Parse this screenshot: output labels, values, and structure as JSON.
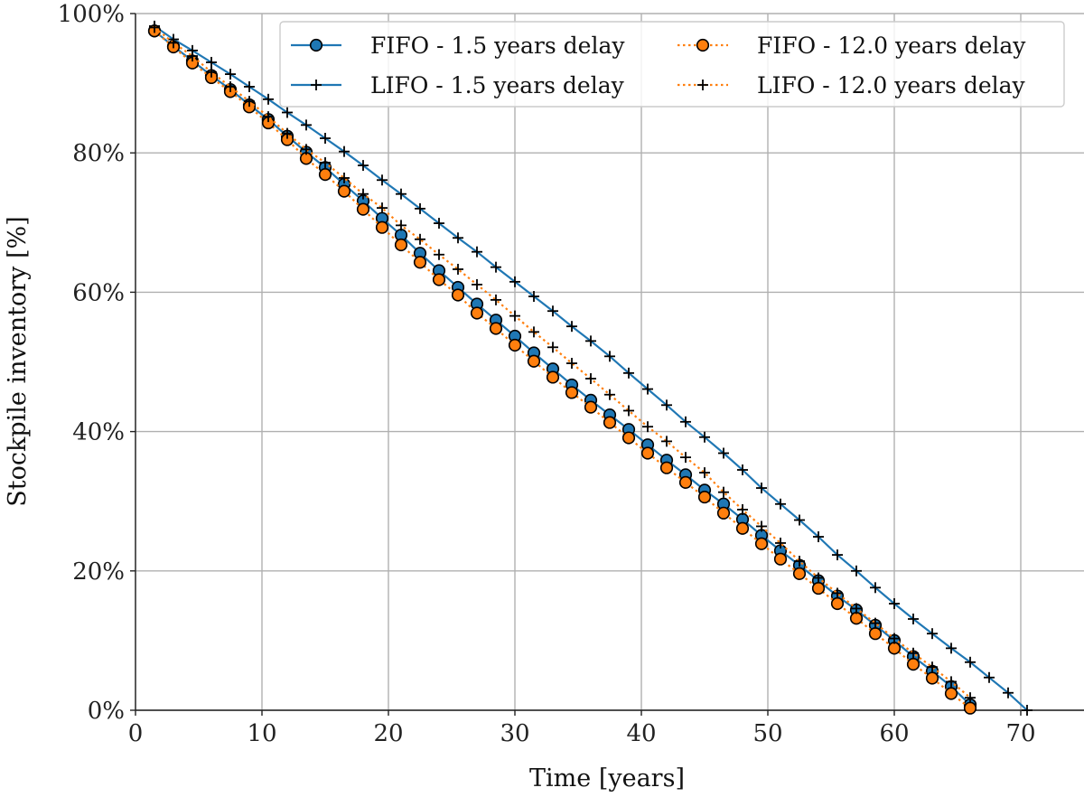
{
  "chart_data": {
    "type": "line",
    "title": "",
    "xlabel": "Time [years]",
    "ylabel": "Stockpile inventory [%]",
    "xlim": [
      0,
      75
    ],
    "ylim": [
      0,
      100
    ],
    "xticks": [
      0,
      10,
      20,
      30,
      40,
      50,
      60,
      70
    ],
    "yticks": [
      0,
      20,
      40,
      60,
      80,
      100
    ],
    "xtick_labels": [
      "0",
      "10",
      "20",
      "30",
      "40",
      "50",
      "60",
      "70"
    ],
    "ytick_labels": [
      "0%",
      "20%",
      "40%",
      "60%",
      "80%",
      "100%"
    ],
    "grid": true,
    "legend_position": "top-right",
    "legend_columns": 2,
    "series": [
      {
        "name": "FIFO - 1.5 years delay",
        "color": "#1f77b4",
        "line_style": "solid",
        "marker": "circle",
        "marker_fill": "#1f77b4",
        "x": [
          1.5,
          3,
          4.5,
          6,
          7.5,
          9,
          10.5,
          12,
          13.5,
          15,
          16.5,
          18,
          19.5,
          21,
          22.5,
          24,
          25.5,
          27,
          28.5,
          30,
          31.5,
          33,
          34.5,
          36,
          37.5,
          39,
          40.5,
          42,
          43.5,
          45,
          46.5,
          48,
          49.5,
          51,
          52.5,
          54,
          55.5,
          57,
          58.5,
          60,
          61.5,
          63,
          64.5,
          66
        ],
        "y": [
          97.5,
          95.3,
          93.2,
          91.1,
          89.1,
          86.9,
          84.8,
          82.4,
          80.1,
          77.9,
          75.5,
          73.1,
          70.6,
          68.2,
          65.6,
          63.1,
          60.7,
          58.3,
          56.0,
          53.7,
          51.3,
          49.0,
          46.7,
          44.5,
          42.4,
          40.3,
          38.1,
          35.9,
          33.8,
          31.6,
          29.6,
          27.4,
          25.1,
          22.9,
          20.8,
          18.6,
          16.4,
          14.4,
          12.2,
          10.0,
          7.7,
          5.6,
          3.4,
          0.8
        ]
      },
      {
        "name": "LIFO - 1.5 years delay",
        "color": "#1f77b4",
        "line_style": "solid",
        "marker": "plus",
        "marker_fill": "#000000",
        "x": [
          1.5,
          3,
          4.5,
          6,
          7.5,
          9,
          10.5,
          12,
          13.5,
          15,
          16.5,
          18,
          19.5,
          21,
          22.5,
          24,
          25.5,
          27,
          28.5,
          30,
          31.5,
          33,
          34.5,
          36,
          37.5,
          39,
          40.5,
          42,
          43.5,
          45,
          46.5,
          48,
          49.5,
          51,
          52.5,
          54,
          55.5,
          57,
          58.5,
          60,
          61.5,
          63,
          64.5,
          66,
          67.5,
          69,
          70.5
        ],
        "y": [
          98.2,
          96.3,
          94.7,
          93.0,
          91.3,
          89.5,
          87.7,
          85.8,
          84.0,
          82.1,
          80.2,
          78.2,
          76.1,
          74.1,
          72.0,
          69.9,
          67.8,
          65.8,
          63.6,
          61.5,
          59.4,
          57.3,
          55.1,
          53.0,
          50.8,
          48.4,
          46.1,
          43.8,
          41.4,
          39.2,
          36.9,
          34.5,
          31.9,
          29.6,
          27.3,
          24.9,
          22.3,
          20.0,
          17.6,
          15.3,
          13.1,
          11.0,
          8.9,
          6.9,
          4.7,
          2.5,
          0.0
        ]
      },
      {
        "name": "FIFO - 12.0 years delay",
        "color": "#ff7f0e",
        "line_style": "dotted",
        "marker": "circle",
        "marker_fill": "#ff7f0e",
        "x": [
          1.5,
          3,
          4.5,
          6,
          7.5,
          9,
          10.5,
          12,
          13.5,
          15,
          16.5,
          18,
          19.5,
          21,
          22.5,
          24,
          25.5,
          27,
          28.5,
          30,
          31.5,
          33,
          34.5,
          36,
          37.5,
          39,
          40.5,
          42,
          43.5,
          45,
          46.5,
          48,
          49.5,
          51,
          52.5,
          54,
          55.5,
          57,
          58.5,
          60,
          61.5,
          63,
          64.5,
          66
        ],
        "y": [
          97.5,
          95.2,
          92.9,
          90.8,
          88.8,
          86.6,
          84.3,
          81.9,
          79.2,
          76.9,
          74.5,
          71.9,
          69.3,
          66.8,
          64.3,
          61.8,
          59.6,
          57.0,
          54.8,
          52.4,
          50.1,
          47.8,
          45.6,
          43.5,
          41.3,
          39.1,
          36.9,
          34.8,
          32.7,
          30.6,
          28.3,
          26.1,
          23.9,
          21.7,
          19.6,
          17.5,
          15.3,
          13.2,
          11.0,
          8.9,
          6.6,
          4.6,
          2.4,
          0.3
        ]
      },
      {
        "name": "LIFO - 12.0 years delay",
        "color": "#ff7f0e",
        "line_style": "dotted",
        "marker": "plus",
        "marker_fill": "#000000",
        "x": [
          1.5,
          3,
          4.5,
          6,
          7.5,
          9,
          10.5,
          12,
          13.5,
          15,
          16.5,
          18,
          19.5,
          21,
          22.5,
          24,
          25.5,
          27,
          28.5,
          30,
          31.5,
          33,
          34.5,
          36,
          37.5,
          39,
          40.5,
          42,
          43.5,
          45,
          46.5,
          48,
          49.5,
          51,
          52.5,
          54,
          55.5,
          57,
          58.5,
          60,
          61.5,
          63,
          64.5,
          66
        ],
        "y": [
          98.0,
          95.8,
          93.9,
          91.6,
          89.5,
          87.4,
          85.2,
          82.8,
          80.5,
          78.6,
          76.4,
          74.1,
          72.1,
          69.6,
          67.6,
          65.4,
          63.3,
          61.1,
          58.9,
          56.6,
          54.3,
          52.1,
          49.8,
          47.6,
          45.3,
          43.0,
          40.7,
          38.6,
          36.3,
          34.1,
          31.3,
          28.8,
          26.4,
          24.0,
          21.4,
          19.0,
          16.8,
          14.6,
          12.5,
          10.3,
          8.2,
          6.2,
          4.1,
          1.8
        ]
      }
    ]
  }
}
